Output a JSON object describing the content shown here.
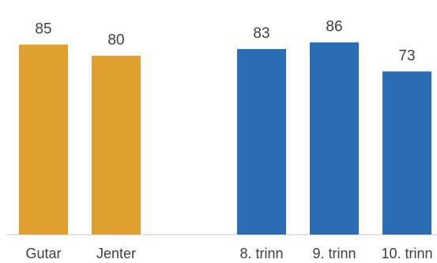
{
  "chart_data": {
    "type": "bar",
    "categories": [
      "Gutar",
      "Jenter",
      "",
      "8. trinn",
      "9. trinn",
      "10. trinn"
    ],
    "values": [
      85,
      80,
      null,
      83,
      86,
      73
    ],
    "value_labels": [
      "85",
      "80",
      "",
      "83",
      "86",
      "73"
    ],
    "bar_colors": [
      "#E0A030",
      "#E0A030",
      "",
      "#2A6DB5",
      "#2A6DB5",
      "#2A6DB5"
    ],
    "ylim": [
      0,
      100
    ],
    "grid": false,
    "legend": "none"
  }
}
